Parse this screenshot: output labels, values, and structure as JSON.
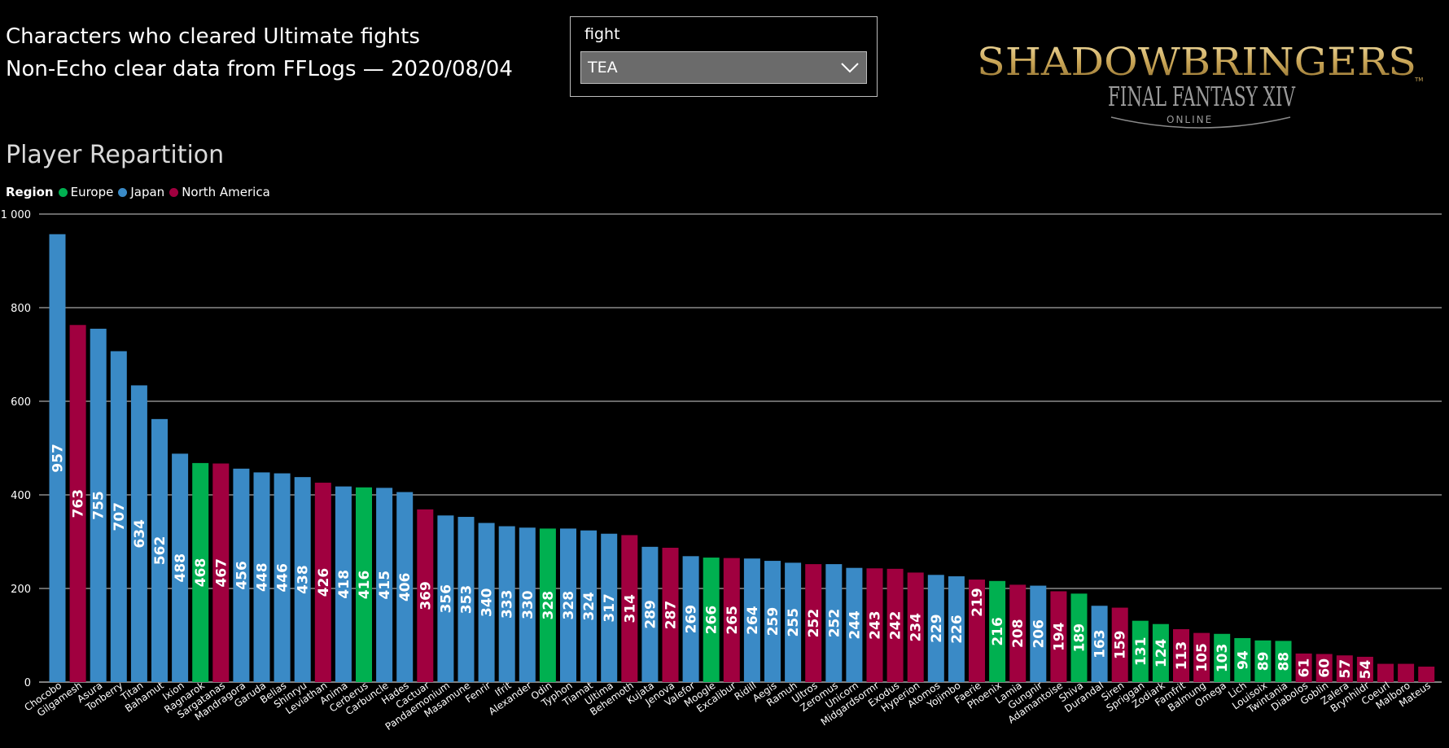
{
  "header": {
    "title_line1": "Characters who cleared Ultimate fights",
    "title_line2": "Non-Echo clear data from FFLogs — 2020/08/04"
  },
  "slicer": {
    "label": "fight",
    "selected": "TEA"
  },
  "logo": {
    "line1": "SHADOWBRINGERS",
    "line2": "FINAL FANTASY XIV",
    "line3": "ONLINE",
    "tm": "TM"
  },
  "section_title": "Player Repartition",
  "legend": {
    "title": "Region",
    "items": [
      {
        "label": "Europe",
        "color": "#00b050"
      },
      {
        "label": "Japan",
        "color": "#3a8ac6"
      },
      {
        "label": "North America",
        "color": "#a0003f"
      }
    ]
  },
  "chart_data": {
    "type": "bar",
    "ylim": [
      0,
      1000
    ],
    "yticks": [
      0,
      200,
      400,
      600,
      800,
      1000
    ],
    "ytick_labels": [
      "0",
      "200",
      "400",
      "600",
      "800",
      "1 000"
    ],
    "grid": true,
    "legend_position": "top-left",
    "categories": [
      "Chocobo",
      "Gilgamesh",
      "Asura",
      "Tonberry",
      "Titan",
      "Bahamut",
      "Ixion",
      "Ragnarok",
      "Sargatanas",
      "Mandragora",
      "Garuda",
      "Belias",
      "Shinryu",
      "Leviathan",
      "Anima",
      "Cerberus",
      "Carbuncle",
      "Hades",
      "Cactuar",
      "Pandaemonium",
      "Masamune",
      "Fenrir",
      "Ifrit",
      "Alexander",
      "Odin",
      "Typhon",
      "Tiamat",
      "Ultima",
      "Behemoth",
      "Kujata",
      "Jenova",
      "Valefor",
      "Moogle",
      "Excalibur",
      "Ridill",
      "Aegis",
      "Ramuh",
      "Ultros",
      "Zeromus",
      "Unicorn",
      "Midgardsormr",
      "Exodus",
      "Hyperion",
      "Atomos",
      "Yojimbo",
      "Faerie",
      "Phoenix",
      "Lamia",
      "Gungnir",
      "Adamantoise",
      "Shiva",
      "Durandal",
      "Siren",
      "Spriggan",
      "Zodiark",
      "Famfrit",
      "Balmung",
      "Omega",
      "Lich",
      "Louisoix",
      "Twintania",
      "Diabolos",
      "Goblin",
      "Zalera",
      "Brynhildr",
      "Coeurl",
      "Malboro",
      "Mateus"
    ],
    "values": [
      957,
      763,
      755,
      707,
      634,
      562,
      488,
      468,
      467,
      456,
      448,
      446,
      438,
      426,
      418,
      416,
      415,
      406,
      369,
      356,
      353,
      340,
      333,
      330,
      328,
      328,
      324,
      317,
      314,
      289,
      287,
      269,
      266,
      265,
      264,
      259,
      255,
      252,
      252,
      244,
      243,
      242,
      234,
      229,
      226,
      219,
      216,
      208,
      206,
      194,
      189,
      163,
      159,
      131,
      124,
      113,
      105,
      103,
      94,
      89,
      88,
      61,
      60,
      57,
      54,
      39,
      39,
      33
    ],
    "labels": [
      "957",
      "763",
      "755",
      "707",
      "634",
      "562",
      "488",
      "468",
      "467",
      "456",
      "448",
      "446",
      "438",
      "426",
      "418",
      "416",
      "415",
      "406",
      "369",
      "356",
      "353",
      "340",
      "333",
      "330",
      "328",
      "328",
      "324",
      "317",
      "314",
      "289",
      "287",
      "269",
      "266",
      "265",
      "264",
      "259",
      "255",
      "252",
      "252",
      "244",
      "243",
      "242",
      "234",
      "229",
      "226",
      "",
      "216",
      "208",
      "206",
      "194",
      "189",
      "163",
      "159",
      "131",
      "124",
      "113",
      "105",
      "103",
      "94",
      "89",
      "88",
      "61",
      "60",
      "57",
      "54",
      "",
      "",
      ""
    ],
    "regions": [
      "Japan",
      "North America",
      "Japan",
      "Japan",
      "Japan",
      "Japan",
      "Japan",
      "Europe",
      "North America",
      "Japan",
      "Japan",
      "Japan",
      "Japan",
      "North America",
      "Japan",
      "Europe",
      "Japan",
      "Japan",
      "North America",
      "Japan",
      "Japan",
      "Japan",
      "Japan",
      "Japan",
      "Europe",
      "Japan",
      "Japan",
      "Japan",
      "North America",
      "Japan",
      "North America",
      "Japan",
      "Europe",
      "North America",
      "Japan",
      "Japan",
      "Japan",
      "North America",
      "Japan",
      "Japan",
      "North America",
      "North America",
      "North America",
      "Japan",
      "Japan",
      "North America",
      "Europe",
      "North America",
      "Japan",
      "North America",
      "Europe",
      "Japan",
      "North America",
      "Europe",
      "Europe",
      "North America",
      "North America",
      "Europe",
      "Europe",
      "Europe",
      "Europe",
      "North America",
      "North America",
      "North America",
      "North America",
      "North America",
      "North America",
      "North America"
    ],
    "overflow_label": {
      "index": 45,
      "text": "219"
    }
  }
}
